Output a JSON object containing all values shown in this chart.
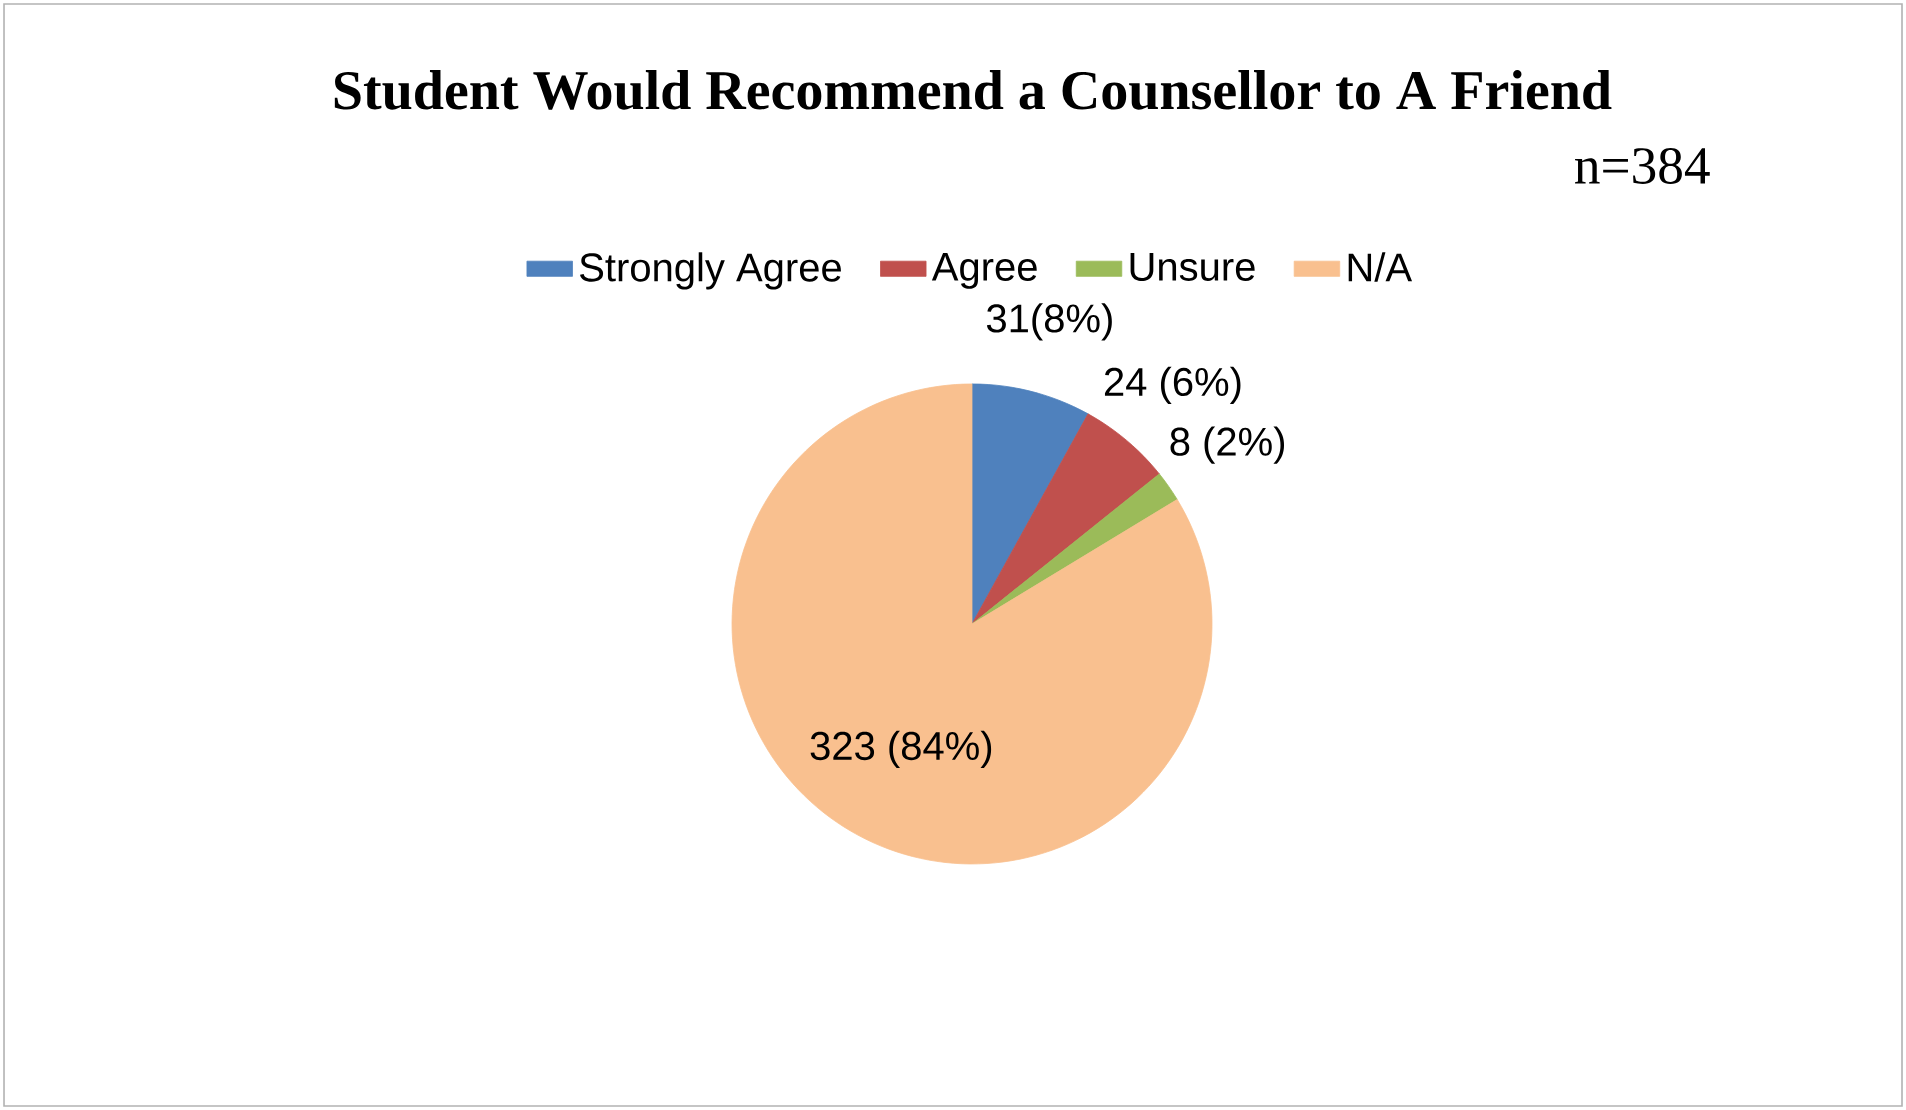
{
  "chart_data": {
    "type": "pie",
    "title": "Student Would Recommend a Counsellor to A Friend",
    "subtitle": "n=384",
    "categories": [
      "Strongly Agree",
      "Agree",
      "Unsure",
      "N/A"
    ],
    "values": [
      31,
      24,
      8,
      323
    ],
    "value_labels": [
      "31(8%)",
      "24 (6%)",
      "8 (2%)",
      "323 (84%)"
    ],
    "colors": [
      "#4f81bd",
      "#c0504d",
      "#9bbb59",
      "#f9c08f"
    ],
    "legend": "top"
  }
}
